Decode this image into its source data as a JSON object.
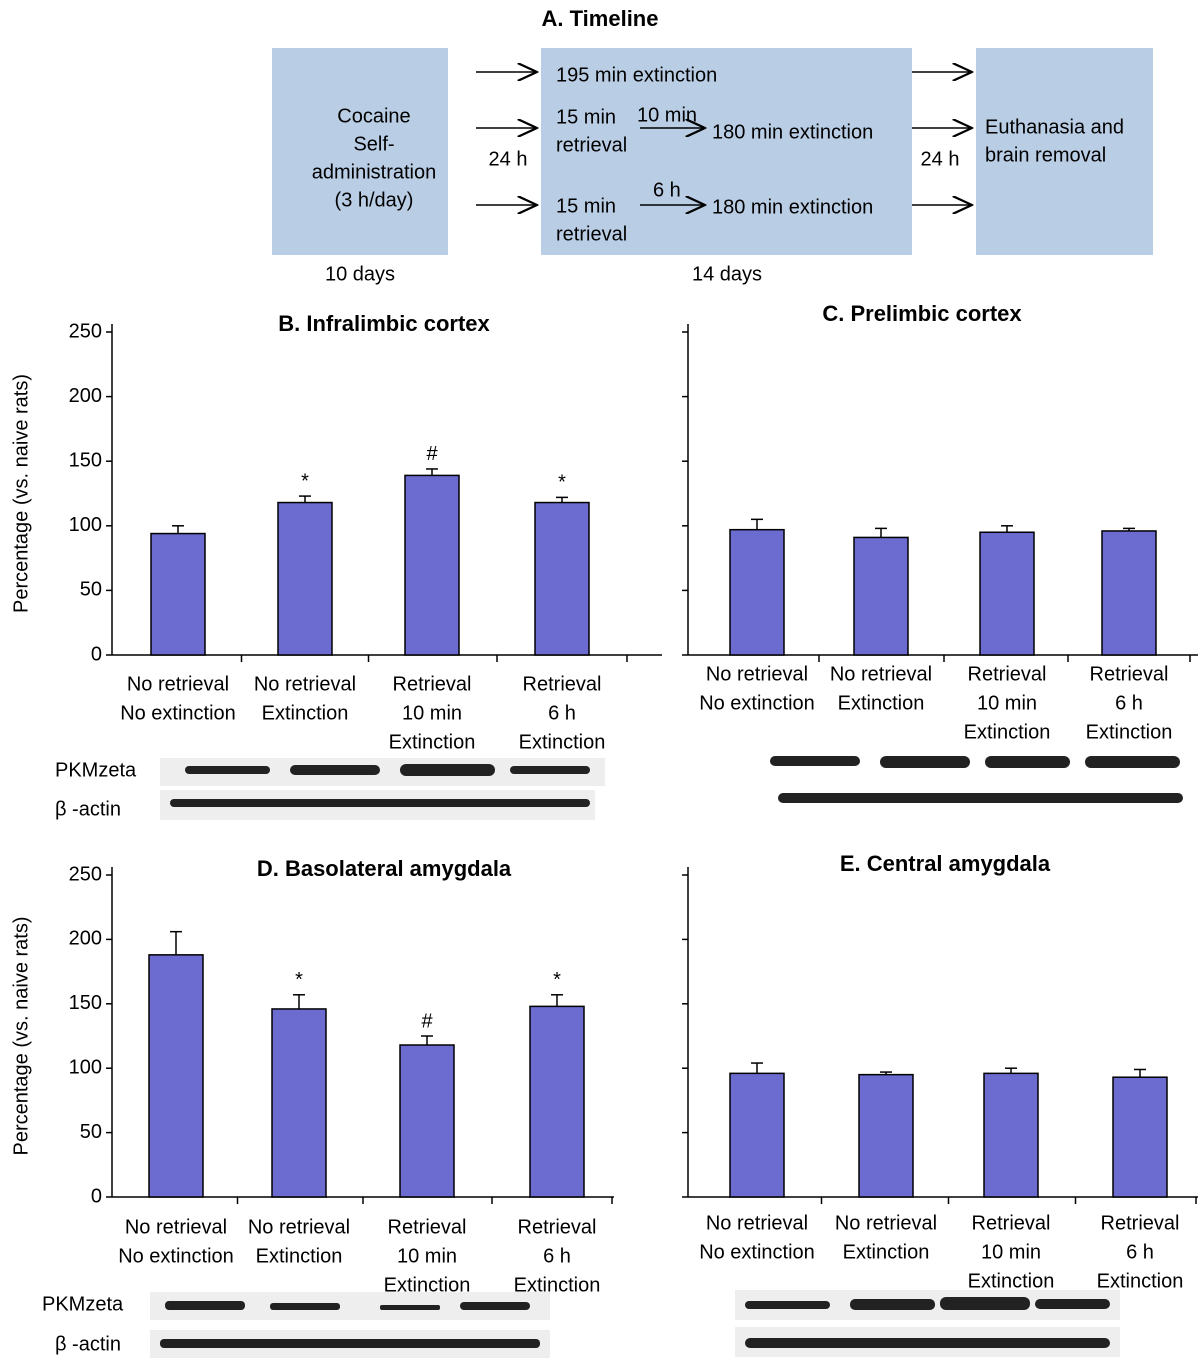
{
  "timeline": {
    "title": "A. Timeline",
    "box1": [
      "Cocaine",
      "Self-",
      "administration",
      "(3 h/day)"
    ],
    "row1": "195 min extinction",
    "row2": [
      "15 min",
      "retrieval",
      "10 min",
      "180 min extinction"
    ],
    "row3": [
      "15 min",
      "retrieval",
      "6 h",
      "180 min extinction"
    ],
    "gap1": "24 h",
    "gap2": "24 h",
    "box3": [
      "Euthanasia and",
      "brain removal"
    ],
    "duration1": "10 days",
    "duration2": "14 days"
  },
  "chart_data": [
    {
      "type": "bar",
      "title": "B. Infralimbic cortex",
      "ylabel": "Percentage (vs. naive rats)",
      "categories": [
        [
          "No retrieval",
          "No extinction"
        ],
        [
          "No retrieval",
          "Extinction"
        ],
        [
          "Retrieval",
          "10 min",
          "Extinction"
        ],
        [
          "Retrieval",
          "6 h",
          "Extinction"
        ]
      ],
      "values": [
        94,
        118,
        139,
        118
      ],
      "errors": [
        6,
        5,
        5,
        4
      ],
      "annotations": [
        null,
        "*",
        "#",
        "*"
      ],
      "color": "#6b6bd0",
      "ylim": [
        0,
        250
      ],
      "yticks": [
        0,
        50,
        100,
        150,
        200,
        250
      ],
      "tick_labels": true
    },
    {
      "type": "bar",
      "title": "C. Prelimbic cortex",
      "categories": [
        [
          "No retrieval",
          "No extinction"
        ],
        [
          "No retrieval",
          "Extinction"
        ],
        [
          "Retrieval",
          "10 min",
          "Extinction"
        ],
        [
          "Retrieval",
          "6 h",
          "Extinction"
        ]
      ],
      "values": [
        97,
        91,
        95,
        96
      ],
      "errors": [
        8,
        7,
        5,
        2
      ],
      "color": "#6b6bd0",
      "ylim": [
        0,
        250
      ],
      "yticks": [
        0,
        50,
        100,
        150,
        200,
        250
      ],
      "tick_labels": false
    },
    {
      "type": "bar",
      "title": "D. Basolateral amygdala",
      "ylabel": "Percentage (vs. naive rats)",
      "categories": [
        [
          "No retrieval",
          "No extinction"
        ],
        [
          "No retrieval",
          "Extinction"
        ],
        [
          "Retrieval",
          "10 min",
          "Extinction"
        ],
        [
          "Retrieval",
          "6 h",
          "Extinction"
        ]
      ],
      "values": [
        188,
        146,
        118,
        148
      ],
      "errors": [
        18,
        11,
        7,
        9
      ],
      "annotations": [
        null,
        "*",
        "#",
        "*"
      ],
      "color": "#6b6bd0",
      "ylim": [
        0,
        250
      ],
      "yticks": [
        0,
        50,
        100,
        150,
        200,
        250
      ],
      "tick_labels": true
    },
    {
      "type": "bar",
      "title": "E. Central amygdala",
      "categories": [
        [
          "No retrieval",
          "No extinction"
        ],
        [
          "No retrieval",
          "Extinction"
        ],
        [
          "Retrieval",
          "10 min",
          "Extinction"
        ],
        [
          "Retrieval",
          "6 h",
          "Extinction"
        ]
      ],
      "values": [
        96,
        95,
        96,
        93
      ],
      "errors": [
        8,
        2,
        4,
        6
      ],
      "color": "#6b6bd0",
      "ylim": [
        0,
        250
      ],
      "yticks": [
        0,
        50,
        100,
        150,
        200,
        250
      ],
      "tick_labels": false
    }
  ],
  "blots": {
    "labels": [
      "PKMzeta",
      "β -actin"
    ]
  }
}
